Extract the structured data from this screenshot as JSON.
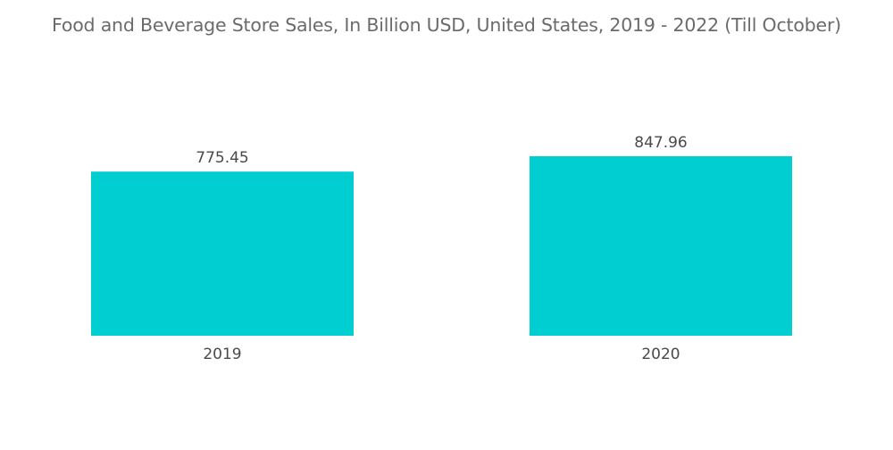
{
  "title": "Food and Beverage Store Sales, In Billion USD, United States, 2019 - 2022 (Till October)",
  "colors": {
    "bar": "#00ced1",
    "text": "#4a4a4a",
    "title": "#6b6b6b",
    "background": "#ffffff"
  },
  "chart_data": {
    "type": "bar",
    "title": "Food and Beverage Store Sales, In Billion USD, United States, 2019 - 2022 (Till October)",
    "categories": [
      "2019",
      "2020"
    ],
    "series": [
      {
        "values": [
          775.45,
          847.96
        ]
      }
    ],
    "value_labels": [
      "775.45",
      "847.96"
    ],
    "xlabel": "",
    "ylabel": "",
    "ylim": [
      0,
      847.96
    ],
    "grid": false,
    "legend": "none",
    "axis_visible": false
  }
}
